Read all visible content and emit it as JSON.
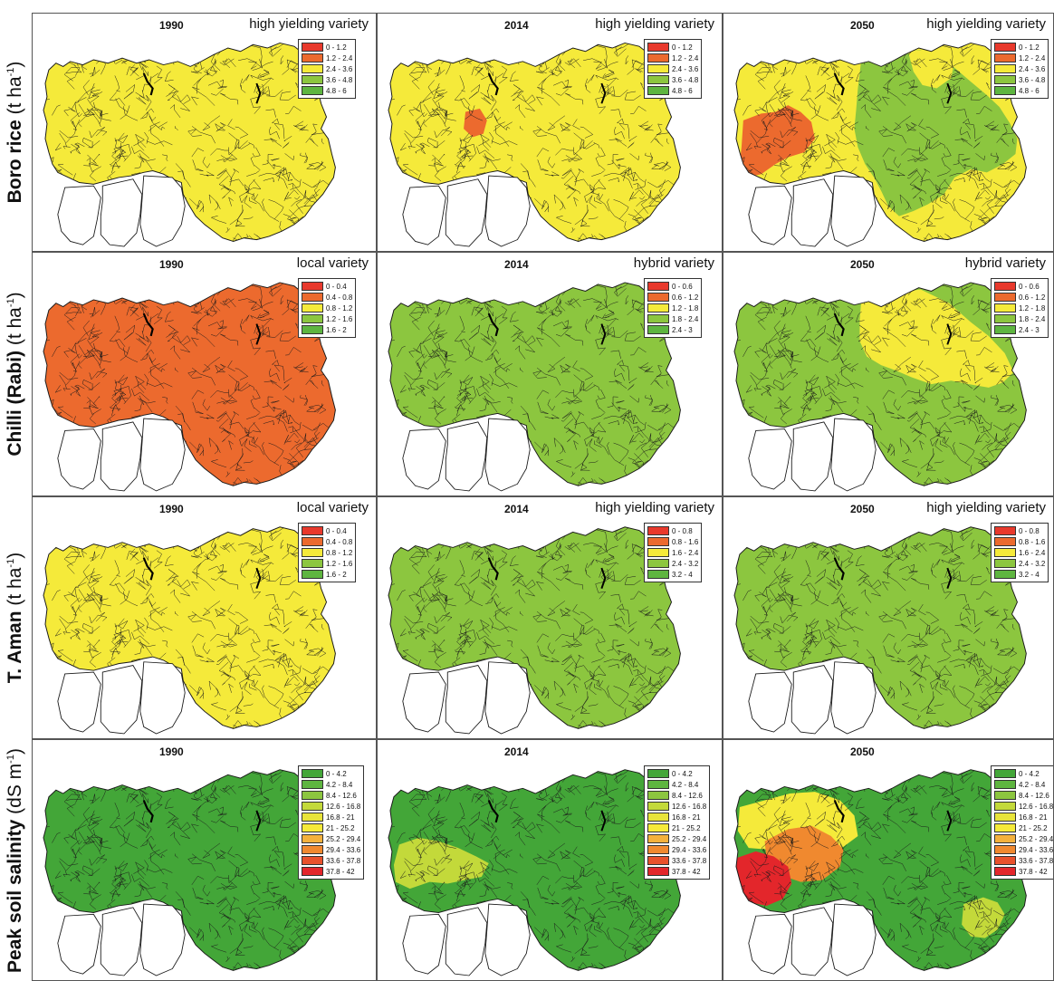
{
  "rows": [
    {
      "name": "Boro rice",
      "unit_open": "(t ha",
      "unit_sup": "-1",
      "unit_close": ")"
    },
    {
      "name": "Chilli (Rabi)",
      "unit_open": "(t ha",
      "unit_sup": "-1",
      "unit_close": ")"
    },
    {
      "name": "T. Aman",
      "unit_open": "(t ha",
      "unit_sup": "-1",
      "unit_close": ")"
    },
    {
      "name": "Peak soil salinity",
      "unit_open": "(dS m",
      "unit_sup": "-1",
      "unit_close": ")"
    }
  ],
  "colors": {
    "red": "#e8392c",
    "orange": "#ec6a2e",
    "yellow": "#f5ea3a",
    "lightgreen": "#8cc63f",
    "green": "#5eb540",
    "darkgreen": "#43a638",
    "lime": "#c3d93a",
    "amber": "#f4b13c",
    "orange2": "#f0892f",
    "red2": "#e8512c",
    "red3": "#e3262b",
    "outline": "#1a1a1a",
    "white": "#ffffff"
  },
  "legends": {
    "boro": [
      {
        "label": "0 - 1.2",
        "color": "#e8392c"
      },
      {
        "label": "1.2 - 2.4",
        "color": "#ec6a2e"
      },
      {
        "label": "2.4 - 3.6",
        "color": "#f5ea3a"
      },
      {
        "label": "3.6 - 4.8",
        "color": "#8cc63f"
      },
      {
        "label": "4.8 - 6",
        "color": "#5eb540"
      }
    ],
    "chilli_local": [
      {
        "label": "0 - 0.4",
        "color": "#e8392c"
      },
      {
        "label": "0.4 - 0.8",
        "color": "#ec6a2e"
      },
      {
        "label": "0.8 - 1.2",
        "color": "#f5ea3a"
      },
      {
        "label": "1.2 - 1.6",
        "color": "#8cc63f"
      },
      {
        "label": "1.6 - 2",
        "color": "#5eb540"
      }
    ],
    "chilli_hybrid": [
      {
        "label": "0 - 0.6",
        "color": "#e8392c"
      },
      {
        "label": "0.6 - 1.2",
        "color": "#ec6a2e"
      },
      {
        "label": "1.2 - 1.8",
        "color": "#f5ea3a"
      },
      {
        "label": "1.8 - 2.4",
        "color": "#8cc63f"
      },
      {
        "label": "2.4 - 3",
        "color": "#5eb540"
      }
    ],
    "aman_local": [
      {
        "label": "0 - 0.4",
        "color": "#e8392c"
      },
      {
        "label": "0.4 - 0.8",
        "color": "#ec6a2e"
      },
      {
        "label": "0.8 - 1.2",
        "color": "#f5ea3a"
      },
      {
        "label": "1.2 - 1.6",
        "color": "#8cc63f"
      },
      {
        "label": "1.6 - 2",
        "color": "#5eb540"
      }
    ],
    "aman_hyv": [
      {
        "label": "0 - 0.8",
        "color": "#e8392c"
      },
      {
        "label": "0.8 - 1.6",
        "color": "#ec6a2e"
      },
      {
        "label": "1.6 - 2.4",
        "color": "#f5ea3a"
      },
      {
        "label": "2.4 - 3.2",
        "color": "#8cc63f"
      },
      {
        "label": "3.2 - 4",
        "color": "#5eb540"
      }
    ],
    "salinity": [
      {
        "label": "0 - 4.2",
        "color": "#43a638"
      },
      {
        "label": "4.2 - 8.4",
        "color": "#5eb540"
      },
      {
        "label": "8.4 - 12.6",
        "color": "#8cc63f"
      },
      {
        "label": "12.6 - 16.8",
        "color": "#c3d93a"
      },
      {
        "label": "16.8 - 21",
        "color": "#e8e43a"
      },
      {
        "label": "21 - 25.2",
        "color": "#f5ea3a"
      },
      {
        "label": "25.2 - 29.4",
        "color": "#f4b13c"
      },
      {
        "label": "29.4 - 33.6",
        "color": "#f0892f"
      },
      {
        "label": "33.6 - 37.8",
        "color": "#e8512c"
      },
      {
        "label": "37.8 - 42",
        "color": "#e3262b"
      }
    ]
  },
  "panels": [
    {
      "id": "boro-1990",
      "year": "1990",
      "variety": "high yielding variety",
      "legend": "boro",
      "base": "yellow",
      "patches": []
    },
    {
      "id": "boro-2014",
      "year": "2014",
      "variety": "high yielding variety",
      "legend": "boro",
      "base": "yellow",
      "patches": [
        {
          "shape": "boro2014",
          "fill": "orange"
        }
      ]
    },
    {
      "id": "boro-2050",
      "year": "2050",
      "variety": "high yielding variety",
      "legend": "boro",
      "base": "yellow",
      "patches": [
        {
          "shape": "east",
          "fill": "lightgreen"
        },
        {
          "shape": "eastYellow",
          "fill": "yellow"
        },
        {
          "shape": "westBlob",
          "fill": "orange"
        }
      ]
    },
    {
      "id": "chilli-1990",
      "year": "1990",
      "variety": "local variety",
      "legend": "chilli_local",
      "base": "orange",
      "patches": []
    },
    {
      "id": "chilli-2014",
      "year": "2014",
      "variety": "hybrid variety",
      "legend": "chilli_hybrid",
      "base": "lightgreen",
      "patches": []
    },
    {
      "id": "chilli-2050",
      "year": "2050",
      "variety": "hybrid variety",
      "legend": "chilli_hybrid",
      "base": "lightgreen",
      "patches": [
        {
          "shape": "northeast",
          "fill": "yellow"
        }
      ]
    },
    {
      "id": "aman-1990",
      "year": "1990",
      "variety": "local variety",
      "legend": "aman_local",
      "base": "yellow",
      "patches": []
    },
    {
      "id": "aman-2014",
      "year": "2014",
      "variety": "high yielding variety",
      "legend": "aman_hyv",
      "base": "lightgreen",
      "patches": []
    },
    {
      "id": "aman-2050",
      "year": "2050",
      "variety": "high yielding variety",
      "legend": "aman_hyv",
      "base": "lightgreen",
      "patches": []
    },
    {
      "id": "sal-1990",
      "year": "1990",
      "variety": "",
      "legend": "salinity",
      "base": "darkgreen",
      "patches": []
    },
    {
      "id": "sal-2014",
      "year": "2014",
      "variety": "",
      "legend": "salinity",
      "base": "darkgreen",
      "patches": [
        {
          "shape": "sal2014",
          "fill": "lime"
        }
      ]
    },
    {
      "id": "sal-2050",
      "year": "2050",
      "variety": "",
      "legend": "salinity",
      "base": "darkgreen",
      "patches": [
        {
          "shape": "salYellow",
          "fill": "yellow"
        },
        {
          "shape": "salOrange",
          "fill": "orange2"
        },
        {
          "shape": "salRed",
          "fill": "red3"
        },
        {
          "shape": "salEast",
          "fill": "lime"
        }
      ]
    }
  ]
}
